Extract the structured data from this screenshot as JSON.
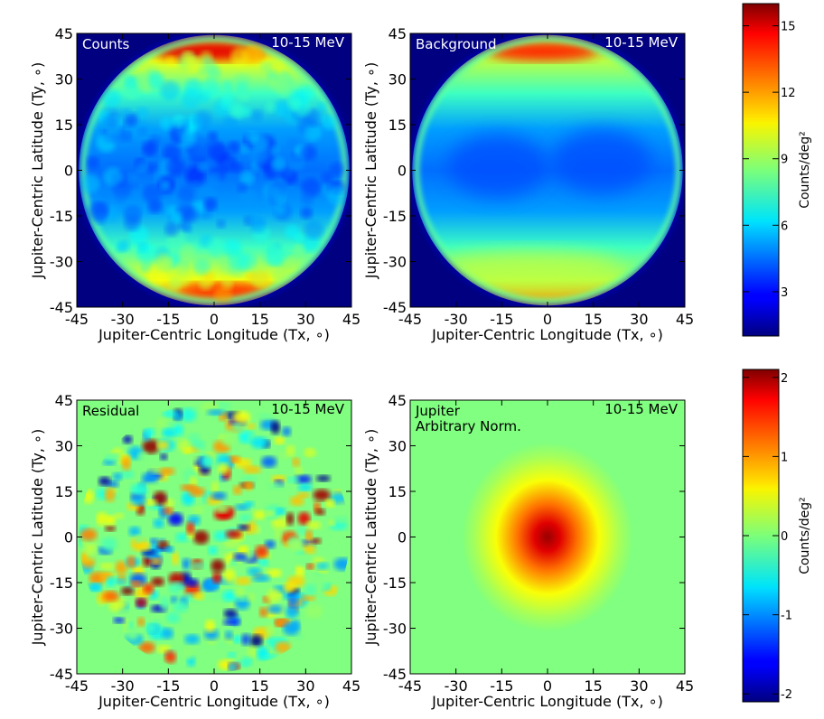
{
  "chart_data": [
    {
      "type": "heatmap",
      "panel_label": "Counts",
      "energy_label": "10-15 MeV",
      "xlabel": "Jupiter-Centric Longitude (Tx, ∘)",
      "ylabel": "Jupiter-Centric Latitude (Ty, ∘)",
      "xlim": [
        -45,
        45
      ],
      "ylim": [
        -45,
        45
      ],
      "xticks": [
        "-45",
        "-30",
        "-15",
        "0",
        "15",
        "30",
        "45"
      ],
      "yticks": [
        "-45",
        "-30",
        "-15",
        "0",
        "15",
        "30",
        "45"
      ],
      "colormap": "jet",
      "value_range": [
        1,
        16
      ],
      "description_values": {
        "pole_max": 13,
        "center_min": 4.5,
        "outside": 1
      }
    },
    {
      "type": "heatmap",
      "panel_label": "Background",
      "energy_label": "10-15 MeV",
      "xlabel": "Jupiter-Centric Longitude (Tx, ∘)",
      "ylabel": "Jupiter-Centric Latitude (Ty, ∘)",
      "xlim": [
        -45,
        45
      ],
      "ylim": [
        -45,
        45
      ],
      "xticks": [
        "-45",
        "-30",
        "-15",
        "0",
        "15",
        "30",
        "45"
      ],
      "yticks": [
        "-45",
        "-30",
        "-15",
        "0",
        "15",
        "30",
        "45"
      ],
      "colormap": "jet",
      "value_range": [
        1,
        16
      ],
      "description_values": {
        "pole_max": 12,
        "center_min": 4.5,
        "outside": 1
      }
    },
    {
      "type": "heatmap",
      "panel_label": "Residual",
      "energy_label": "10-15 MeV",
      "xlabel": "Jupiter-Centric Longitude (Tx, ∘)",
      "ylabel": "Jupiter-Centric Latitude (Ty, ∘)",
      "xlim": [
        -45,
        45
      ],
      "ylim": [
        -45,
        45
      ],
      "xticks": [
        "-45",
        "-30",
        "-15",
        "0",
        "15",
        "30",
        "45"
      ],
      "yticks": [
        "-45",
        "-30",
        "-15",
        "0",
        "15",
        "30",
        "45"
      ],
      "colormap": "jet",
      "value_range": [
        -2.1,
        2.1
      ]
    },
    {
      "type": "heatmap",
      "panel_label": "Jupiter\nArbitrary Norm.",
      "energy_label": "10-15 MeV",
      "xlabel": "Jupiter-Centric Longitude (Tx, ∘)",
      "ylabel": "Jupiter-Centric Latitude (Ty, ∘)",
      "xlim": [
        -45,
        45
      ],
      "ylim": [
        -45,
        45
      ],
      "xticks": [
        "-45",
        "-30",
        "-15",
        "0",
        "15",
        "30",
        "45"
      ],
      "yticks": [
        "-45",
        "-30",
        "-15",
        "0",
        "15",
        "30",
        "45"
      ],
      "colormap": "jet",
      "value_range": [
        -2.1,
        2.1
      ],
      "description_values": {
        "peak": 2.0,
        "peak_center": [
          0,
          0
        ]
      }
    }
  ],
  "colorbars": [
    {
      "label": "Counts/deg²",
      "range": [
        1,
        16
      ],
      "ticks": [
        "3",
        "6",
        "9",
        "12",
        "15"
      ],
      "tick_values": [
        3,
        6,
        9,
        12,
        15
      ]
    },
    {
      "label": "Counts/deg²",
      "range": [
        -2.1,
        2.1
      ],
      "ticks": [
        "-2",
        "-1",
        "0",
        "1",
        "2"
      ],
      "tick_values": [
        -2,
        -1,
        0,
        1,
        2
      ]
    }
  ]
}
